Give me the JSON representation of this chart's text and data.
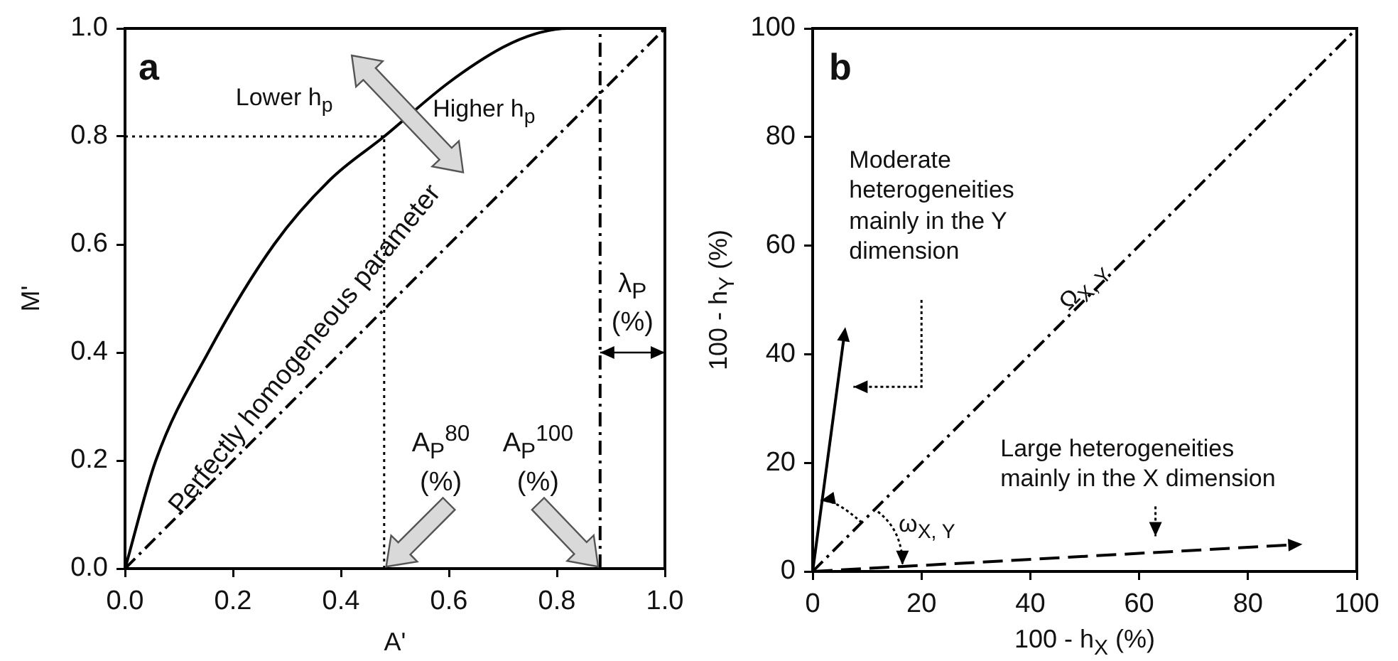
{
  "chart_data": [
    {
      "type": "line",
      "xlabel": "A'",
      "ylabel": "M'",
      "xlim": [
        0,
        1
      ],
      "ylim": [
        0,
        1
      ],
      "xticks": [
        {
          "value": 0,
          "label": "0.0"
        },
        {
          "value": 0.2,
          "label": "0.2"
        },
        {
          "value": 0.4,
          "label": "0.4"
        },
        {
          "value": 0.6,
          "label": "0.6"
        },
        {
          "value": 0.8,
          "label": "0.8"
        },
        {
          "value": 1,
          "label": "1.0"
        }
      ],
      "yticks": [
        {
          "value": 0,
          "label": "0.0"
        },
        {
          "value": 0.2,
          "label": "0.2"
        },
        {
          "value": 0.4,
          "label": "0.4"
        },
        {
          "value": 0.6,
          "label": "0.6"
        },
        {
          "value": 0.8,
          "label": "0.8"
        },
        {
          "value": 1,
          "label": "1.0"
        }
      ],
      "series": [
        {
          "color": "#000000",
          "line_style": "solid",
          "x": [
            0,
            0.057,
            0.154,
            0.276,
            0.38,
            0.48,
            0.6,
            0.7,
            0.76,
            0.82,
            0.88
          ],
          "values": [
            0,
            0.2,
            0.4,
            0.6,
            0.72,
            0.8,
            0.9,
            0.965,
            0.99,
            1,
            1
          ]
        },
        {
          "color": "#000000",
          "line_style": "dashed",
          "x": [
            0,
            1
          ],
          "values": [
            0,
            1
          ]
        },
        {
          "color": "#000000",
          "line_style": "dotted",
          "x": [
            0,
            0.48
          ],
          "values": [
            0.8,
            0.8
          ]
        },
        {
          "color": "#000000",
          "line_style": "dotted",
          "x": [
            0.48,
            0.48
          ],
          "values": [
            0,
            0.8
          ]
        }
      ],
      "ref_lines": [
        {
          "axis": "x",
          "value": 0.88,
          "line_style": "dashed"
        }
      ],
      "annotations": [
        "a",
        "Lower h$_{p}$",
        "Higher h$_{p}$",
        "Perfectly homogeneous parameter",
        {
          "text": "A$_{P}$$^{80}$\n(%)",
          "x": 0.48,
          "y": 0
        },
        {
          "text": "A$_{P}$$^{100}$\n(%)",
          "x": 0.88,
          "y": 0
        },
        "λ$_{P}$\n(%)"
      ]
    },
    {
      "type": "line",
      "xlabel": "100 - h$_{X}$ (%)",
      "ylabel": "100 - h$_{Y}$ (%)",
      "xlim": [
        0,
        100
      ],
      "ylim": [
        0,
        100
      ],
      "xticks": [
        0,
        20,
        40,
        60,
        80,
        100
      ],
      "yticks": [
        0,
        20,
        40,
        60,
        80,
        100
      ],
      "series": [
        {
          "color": "#000000",
          "line_style": "dashed",
          "x": [
            0,
            100
          ],
          "values": [
            0,
            100
          ]
        }
      ],
      "annotations": [
        "b",
        "Moderate\nheterogeneities\nmainly in the Y\ndimension",
        "Ω$_{X, Y}$",
        "ω$_{X, Y}$",
        "Large heterogeneities\nmainly in the X dimension"
      ]
    }
  ]
}
